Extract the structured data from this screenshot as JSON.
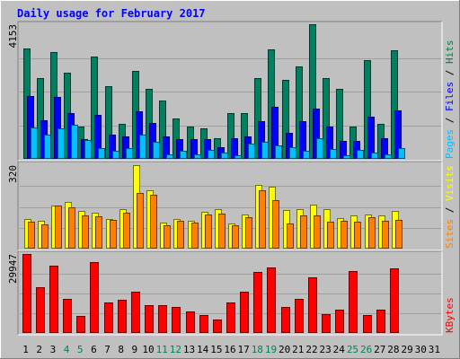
{
  "chart_data": {
    "type": "bar",
    "title": "Daily usage for February 2017",
    "categories": [
      "1",
      "2",
      "3",
      "4",
      "5",
      "6",
      "7",
      "8",
      "9",
      "10",
      "11",
      "12",
      "13",
      "14",
      "15",
      "16",
      "17",
      "18",
      "19",
      "20",
      "21",
      "22",
      "23",
      "24",
      "25",
      "26",
      "27",
      "28",
      "29",
      "30",
      "31"
    ],
    "weekend_days": [
      "4",
      "5",
      "11",
      "12",
      "18",
      "19",
      "25",
      "26"
    ],
    "panels": [
      {
        "id": "hits",
        "ymax_label": "4153",
        "ymax": 4153,
        "legend": [
          {
            "text": "Pages",
            "color": "#00c0ff"
          },
          {
            "text": " / ",
            "color": "#000000"
          },
          {
            "text": "Files",
            "color": "#0000ff"
          },
          {
            "text": " / ",
            "color": "#000000"
          },
          {
            "text": "Hits",
            "color": "#008040"
          }
        ],
        "series": [
          {
            "name": "Hits",
            "color": "#008060",
            "values": [
              3400,
              2500,
              3300,
              2650,
              1000,
              3150,
              2250,
              1070,
              2720,
              2150,
              1800,
              1250,
              1000,
              950,
              650,
              1400,
              1420,
              2500,
              3380,
              2450,
              2850,
              4153,
              2500,
              2150,
              1000,
              3050,
              1090,
              3350,
              0,
              0,
              0
            ]
          },
          {
            "name": "Files",
            "color": "#0000ff",
            "values": [
              1950,
              1200,
              1900,
              1400,
              600,
              1370,
              760,
              700,
              1460,
              1100,
              700,
              620,
              600,
              600,
              350,
              650,
              700,
              1150,
              1600,
              800,
              1150,
              1560,
              1000,
              550,
              550,
              1300,
              650,
              1500,
              0,
              0,
              0
            ]
          },
          {
            "name": "Pages",
            "color": "#00c0ff",
            "values": [
              970,
              750,
              930,
              1050,
              580,
              330,
              260,
              340,
              740,
              520,
              130,
              250,
              150,
              290,
              190,
              100,
              470,
              520,
              420,
              350,
              240,
              640,
              300,
              120,
              270,
              200,
              150,
              340,
              0,
              0,
              0
            ]
          }
        ]
      },
      {
        "id": "visits",
        "ymax_label": "320",
        "ymax": 320,
        "legend": [
          {
            "text": "Sites",
            "color": "#ff8000"
          },
          {
            "text": " / ",
            "color": "#000000"
          },
          {
            "text": "Visits",
            "color": "#ffff00"
          }
        ],
        "series": [
          {
            "name": "Visits",
            "color": "#ffff00",
            "values": [
              115,
              106,
              165,
              180,
              145,
              138,
              115,
              152,
              320,
              222,
              100,
              115,
              105,
              140,
              150,
              98,
              130,
              245,
              238,
              148,
              152,
              170,
              150,
              118,
              128,
              130,
              126,
              146,
              0,
              0,
              0
            ]
          },
          {
            "name": "Sites",
            "color": "#ff8000",
            "values": [
              103,
              93,
              165,
              158,
              128,
              124,
              111,
              138,
              214,
              205,
              90,
              108,
              100,
              130,
              133,
              90,
              122,
              222,
              185,
              95,
              128,
              128,
              102,
              105,
              102,
              122,
              106,
              110,
              0,
              0,
              0
            ]
          }
        ]
      },
      {
        "id": "kbytes",
        "ymax_label": "29947",
        "ymax": 29947,
        "legend": [
          {
            "text": "KBytes",
            "color": "#ff0000"
          }
        ],
        "series": [
          {
            "name": "KBytes",
            "color": "#ff0000",
            "values": [
              29947,
              17500,
              25500,
              12800,
              6500,
              27000,
              11500,
              12500,
              15500,
              10500,
              10500,
              9700,
              8000,
              6800,
              5200,
              11500,
              15800,
              23000,
              24700,
              10000,
              12800,
              21000,
              7000,
              9000,
              23500,
              6800,
              9000,
              24500,
              0,
              0,
              0
            ]
          }
        ]
      }
    ]
  }
}
